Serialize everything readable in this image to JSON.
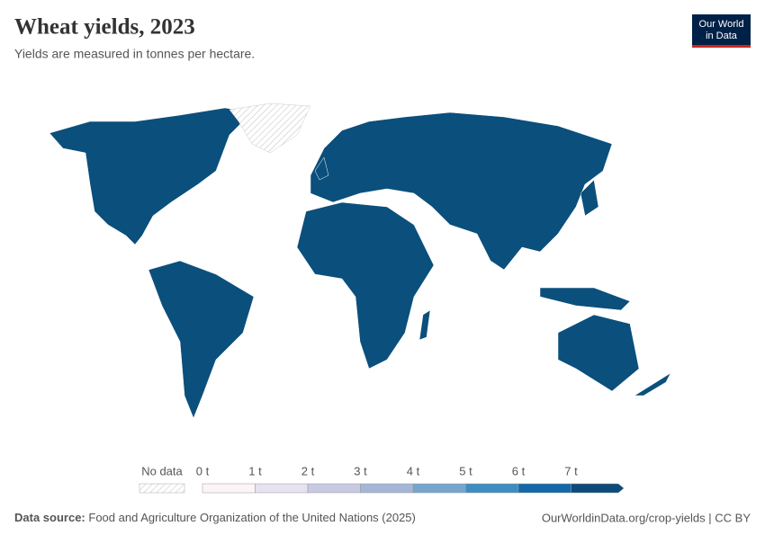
{
  "header": {
    "title": "Wheat yields, 2023",
    "subtitle": "Yields are measured in tonnes per hectare.",
    "logo": [
      "Our World",
      "in Data"
    ]
  },
  "map": {
    "color": "#0b4f7c",
    "no_data_color": "#e6e6e6"
  },
  "legend": {
    "no_data": "No data",
    "bins": [
      {
        "label": "0 t",
        "color": "#fcf5f8"
      },
      {
        "label": "1 t",
        "color": "#e6e2ef"
      },
      {
        "label": "2 t",
        "color": "#c7cae2"
      },
      {
        "label": "3 t",
        "color": "#a5b6d7"
      },
      {
        "label": "4 t",
        "color": "#76a5cd"
      },
      {
        "label": "5 t",
        "color": "#3d8dc1"
      },
      {
        "label": "6 t",
        "color": "#1468a8"
      },
      {
        "label": "7 t",
        "color": "#0c4a7a"
      }
    ]
  },
  "footer": {
    "source_label": "Data source:",
    "source": "Food and Agriculture Organization of the United Nations (2025)",
    "link": "OurWorldinData.org/crop-yields | CC BY"
  }
}
